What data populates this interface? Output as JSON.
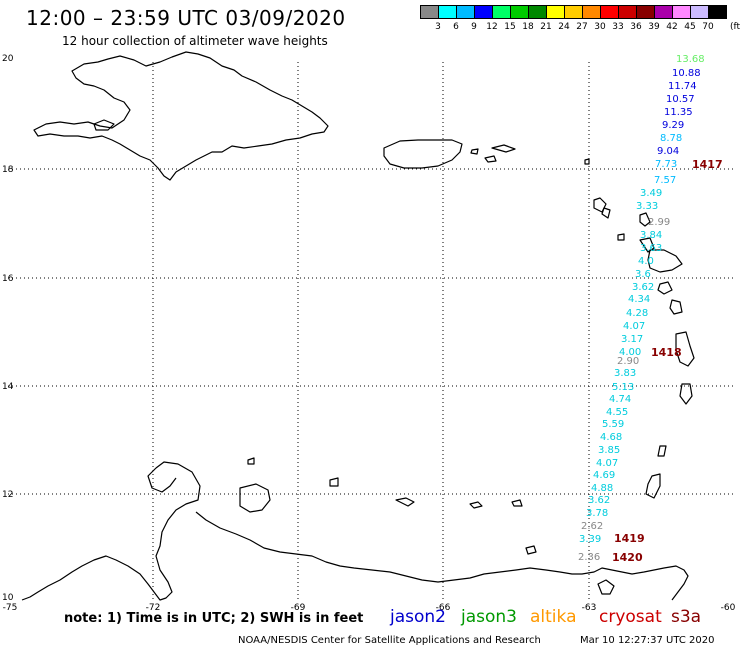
{
  "header": {
    "title": "12:00 – 23:59 UTC 03/09/2020",
    "subtitle": "12 hour collection of altimeter wave heights"
  },
  "scale": {
    "unit": "(ft)",
    "colors": [
      "#888888",
      "#00ffff",
      "#00bbff",
      "#0000ff",
      "#00ff66",
      "#00cc00",
      "#008800",
      "#ffff00",
      "#ffcc00",
      "#ff8800",
      "#ff0000",
      "#cc0000",
      "#880000",
      "#aa00aa",
      "#ff88ff",
      "#ccbbff",
      "#000000"
    ],
    "labels": [
      "3",
      "6",
      "9",
      "12",
      "15",
      "18",
      "21",
      "24",
      "27",
      "30",
      "33",
      "36",
      "39",
      "42",
      "45",
      "70"
    ]
  },
  "axes": {
    "lat_labels": [
      "20",
      "18",
      "16",
      "14",
      "12",
      "10"
    ],
    "lon_labels": [
      "-75",
      "-72",
      "-69",
      "-66",
      "-63",
      "-60"
    ]
  },
  "passes": {
    "labels": [
      "1417",
      "1418",
      "1419",
      "1420"
    ],
    "color": "#880000"
  },
  "wave_heights": [
    {
      "v": "13.68",
      "c": "#66ee66"
    },
    {
      "v": "10.88",
      "c": "#0000dd"
    },
    {
      "v": "11.74",
      "c": "#0000dd"
    },
    {
      "v": "10.57",
      "c": "#0000dd"
    },
    {
      "v": "11.35",
      "c": "#0000dd"
    },
    {
      "v": "9.29",
      "c": "#0000dd"
    },
    {
      "v": "8.78",
      "c": "#00bbff"
    },
    {
      "v": "9.04",
      "c": "#0000dd"
    },
    {
      "v": "7.73",
      "c": "#00bbff"
    },
    {
      "v": "7.57",
      "c": "#00bbff"
    },
    {
      "v": "3.49",
      "c": "#00ccdd"
    },
    {
      "v": "3.33",
      "c": "#00ccdd"
    },
    {
      "v": "2.99",
      "c": "#888888"
    },
    {
      "v": "3.84",
      "c": "#00ccdd"
    },
    {
      "v": "3.63",
      "c": "#00ccdd"
    },
    {
      "v": "4.0",
      "c": "#00ccdd"
    },
    {
      "v": "3.6",
      "c": "#00ccdd"
    },
    {
      "v": "3.62",
      "c": "#00ccdd"
    },
    {
      "v": "4.34",
      "c": "#00ccdd"
    },
    {
      "v": "4.28",
      "c": "#00ccdd"
    },
    {
      "v": "4.07",
      "c": "#00ccdd"
    },
    {
      "v": "3.17",
      "c": "#00ccdd"
    },
    {
      "v": "4.00",
      "c": "#00ccdd"
    },
    {
      "v": "2.90",
      "c": "#888888"
    },
    {
      "v": "3.83",
      "c": "#00ccdd"
    },
    {
      "v": "5.13",
      "c": "#00ccdd"
    },
    {
      "v": "4.74",
      "c": "#00ccdd"
    },
    {
      "v": "4.55",
      "c": "#00ccdd"
    },
    {
      "v": "5.59",
      "c": "#00ccdd"
    },
    {
      "v": "4.68",
      "c": "#00ccdd"
    },
    {
      "v": "3.85",
      "c": "#00ccdd"
    },
    {
      "v": "4.07",
      "c": "#00ccdd"
    },
    {
      "v": "4.69",
      "c": "#00ccdd"
    },
    {
      "v": "4.88",
      "c": "#00ccdd"
    },
    {
      "v": "3.62",
      "c": "#00ccdd"
    },
    {
      "v": "3.78",
      "c": "#00ccdd"
    },
    {
      "v": "2.62",
      "c": "#888888"
    },
    {
      "v": "3.39",
      "c": "#00ccdd"
    },
    {
      "v": "2.36",
      "c": "#888888"
    }
  ],
  "legend": {
    "note": "note:  1) Time is in UTC; 2) SWH is in feet",
    "satellites": [
      {
        "name": "jason2",
        "color": "#0000cc"
      },
      {
        "name": "jason3",
        "color": "#009900"
      },
      {
        "name": "altika",
        "color": "#ff9900"
      },
      {
        "name": "cryosat",
        "color": "#cc0000"
      },
      {
        "name": "s3a",
        "color": "#880000"
      }
    ]
  },
  "footer": {
    "credit": "NOAA/NESDIS Center for Satellite Applications and Research",
    "timestamp": "Mar 10 12:27:37 UTC 2020"
  }
}
